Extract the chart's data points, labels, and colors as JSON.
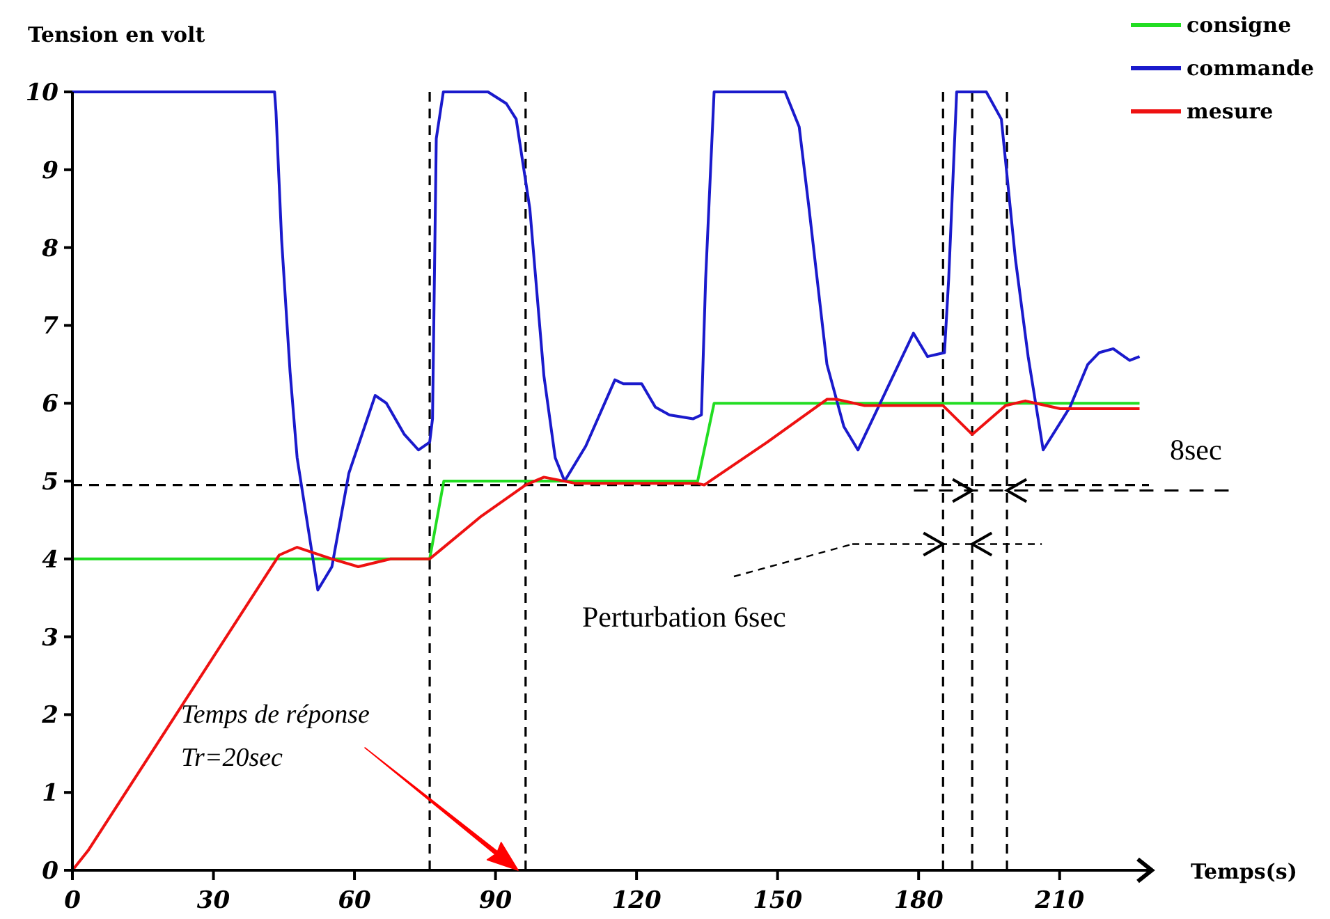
{
  "chart_data": {
    "type": "line",
    "ylabel": "Tension en volt",
    "xlabel": "Temps(s)",
    "xlim": [
      0,
      229
    ],
    "xticks": [
      0,
      30,
      60,
      90,
      120,
      150,
      180,
      210
    ],
    "ylim": [
      0,
      10
    ],
    "yticks": [
      0,
      1,
      2,
      3,
      4,
      5,
      6,
      7,
      8,
      9,
      10
    ],
    "grid": false,
    "legend": "top right",
    "line_style": "solid",
    "marker": "none",
    "series": [
      {
        "name": "consigne",
        "color": "#22dd22",
        "x": [
          0,
          76,
          79,
          133,
          136.5,
          227
        ],
        "values": [
          4,
          4,
          5,
          5,
          6,
          6
        ]
      },
      {
        "name": "commande",
        "color": "#1a1acc",
        "x": [
          0,
          43,
          43.3,
          44.5,
          46.3,
          47.8,
          52.2,
          55.2,
          58.8,
          64.4,
          66.8,
          70.6,
          73.6,
          76,
          76.6,
          77.4,
          78.9,
          88.4,
          92.3,
          94.4,
          97.3,
          100.3,
          102.7,
          104.7,
          109.2,
          115.4,
          117.2,
          121.1,
          124,
          127,
          132,
          133.8,
          134.7,
          136.5,
          151.6,
          154.6,
          156.7,
          160.5,
          164.1,
          167.1,
          178.9,
          181.9,
          185.5,
          186.4,
          188.1,
          194.4,
          197.6,
          200.6,
          203.3,
          206.5,
          212.2,
          216,
          218.4,
          221.4,
          224.9,
          227
        ],
        "values": [
          10,
          10,
          9.75,
          8.1,
          6.4,
          5.3,
          3.6,
          3.9,
          5.1,
          6.1,
          6,
          5.6,
          5.4,
          5.5,
          5.8,
          9.4,
          10,
          10,
          9.85,
          9.65,
          8.5,
          6.35,
          5.3,
          5,
          5.45,
          6.3,
          6.25,
          6.25,
          5.95,
          5.85,
          5.8,
          5.85,
          7.6,
          10,
          10,
          9.55,
          8.5,
          6.5,
          5.7,
          5.4,
          6.9,
          6.6,
          6.65,
          7.6,
          10,
          10,
          9.65,
          7.85,
          6.6,
          5.4,
          5.95,
          6.5,
          6.65,
          6.7,
          6.55,
          6.6
        ]
      },
      {
        "name": "mesure",
        "color": "#ee1111",
        "x": [
          0,
          3.3,
          44,
          47.8,
          55.2,
          60.8,
          67.7,
          76,
          78,
          87,
          96.4,
          100.3,
          107.1,
          133,
          134.4,
          147.8,
          160.5,
          162.6,
          168.5,
          185.2,
          191.4,
          198.5,
          202.7,
          207.1,
          210.1,
          227
        ],
        "values": [
          0,
          0.25,
          4.05,
          4.15,
          4,
          3.9,
          4,
          4,
          4.1,
          4.55,
          4.95,
          5.05,
          4.97,
          4.97,
          4.95,
          5.5,
          6.05,
          6.05,
          5.97,
          5.97,
          5.6,
          5.97,
          6.03,
          5.97,
          5.93,
          5.93
        ]
      }
    ],
    "ref_lines": [
      {
        "axis": "y",
        "value": 4.95,
        "color": "#000000",
        "line_style": "dashed"
      },
      {
        "axis": "x",
        "value": 76,
        "color": "#000000",
        "line_style": "dashed"
      },
      {
        "axis": "x",
        "value": 96.4,
        "color": "#000000",
        "line_style": "dashed"
      },
      {
        "axis": "x",
        "value": 185.2,
        "color": "#000000",
        "line_style": "dashed"
      },
      {
        "axis": "x",
        "value": 191.4,
        "color": "#000000",
        "line_style": "dashed"
      },
      {
        "axis": "x",
        "value": 198.8,
        "color": "#000000",
        "line_style": "dashed"
      }
    ],
    "annotations": [
      "Temps de réponse",
      "Tr=20sec",
      "Perturbation 6sec",
      {
        "text": "8sec",
        "x": 179,
        "y": 4.88
      }
    ]
  }
}
